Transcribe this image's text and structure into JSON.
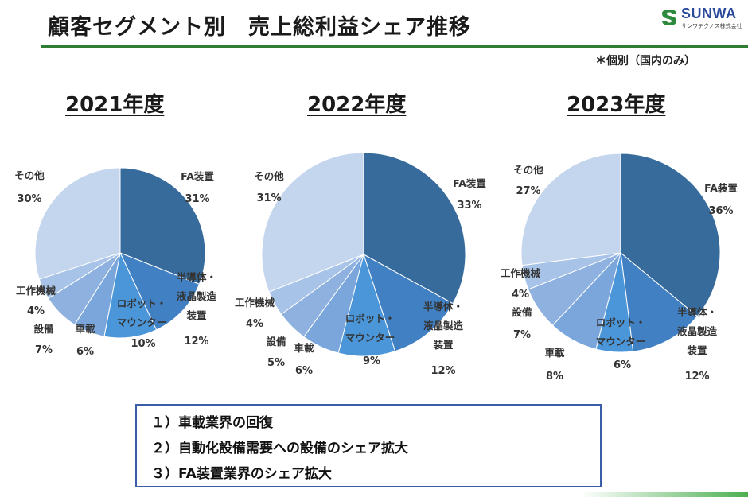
{
  "header": {
    "title": "顧客セグメント別　売上総利益シェア推移",
    "note": "＊個別（国内のみ）",
    "logo_text": "SUNWA",
    "logo_sub": "サンワテクノス株式会社"
  },
  "colors": {
    "fa": "#376b9c",
    "semi": "#4180c2",
    "robot": "#4b96d8",
    "auto": "#7aa6db",
    "equip": "#8eb1e0",
    "machine": "#a8c3e8",
    "other": "#c4d5ee",
    "title_rule": "#2f7d32",
    "box_border": "#3b5ea8"
  },
  "chart_data": [
    {
      "type": "pie",
      "title": "2021年度",
      "categories": [
        "FA装置",
        "半導体・液晶製造装置",
        "ロボット・マウンター",
        "車載",
        "設備",
        "工作機械",
        "その他"
      ],
      "values": [
        31,
        12,
        10,
        6,
        7,
        4,
        30
      ],
      "labels": [
        {
          "name": "FA装置",
          "value": "31%"
        },
        {
          "name": "半導体・液晶製造装置",
          "value": "12%"
        },
        {
          "name": "ロボット・マウンター",
          "value": "10%"
        },
        {
          "name": "車載",
          "value": "6%"
        },
        {
          "name": "設備",
          "value": "7%"
        },
        {
          "name": "工作機械",
          "value": "4%"
        },
        {
          "name": "その他",
          "value": "30%"
        }
      ]
    },
    {
      "type": "pie",
      "title": "2022年度",
      "categories": [
        "FA装置",
        "半導体・液晶製造装置",
        "ロボット・マウンター",
        "車載",
        "設備",
        "工作機械",
        "その他"
      ],
      "values": [
        33,
        12,
        9,
        6,
        5,
        4,
        31
      ],
      "labels": [
        {
          "name": "FA装置",
          "value": "33%"
        },
        {
          "name": "半導体・液晶製造装置",
          "value": "12%"
        },
        {
          "name": "ロボット・マウンター",
          "value": "9%"
        },
        {
          "name": "車載",
          "value": "6%"
        },
        {
          "name": "設備",
          "value": "5%"
        },
        {
          "name": "工作機械",
          "value": "4%"
        },
        {
          "name": "その他",
          "value": "31%"
        }
      ]
    },
    {
      "type": "pie",
      "title": "2023年度",
      "categories": [
        "FA装置",
        "半導体・液晶製造装置",
        "ロボット・マウンター",
        "車載",
        "設備",
        "工作機械",
        "その他"
      ],
      "values": [
        36,
        12,
        6,
        8,
        7,
        4,
        27
      ],
      "labels": [
        {
          "name": "FA装置",
          "value": "36%"
        },
        {
          "name": "半導体・液晶製造装置",
          "value": "12%"
        },
        {
          "name": "ロボット・マウンター",
          "value": "6%"
        },
        {
          "name": "車載",
          "value": "8%"
        },
        {
          "name": "設備",
          "value": "7%"
        },
        {
          "name": "工作機械",
          "value": "4%"
        },
        {
          "name": "その他",
          "value": "27%"
        }
      ]
    }
  ],
  "summary": {
    "items": [
      "１）車載業界の回復",
      "２）自動化設備需要への設備のシェア拡大",
      "３）FA装置業界のシェア拡大"
    ]
  }
}
